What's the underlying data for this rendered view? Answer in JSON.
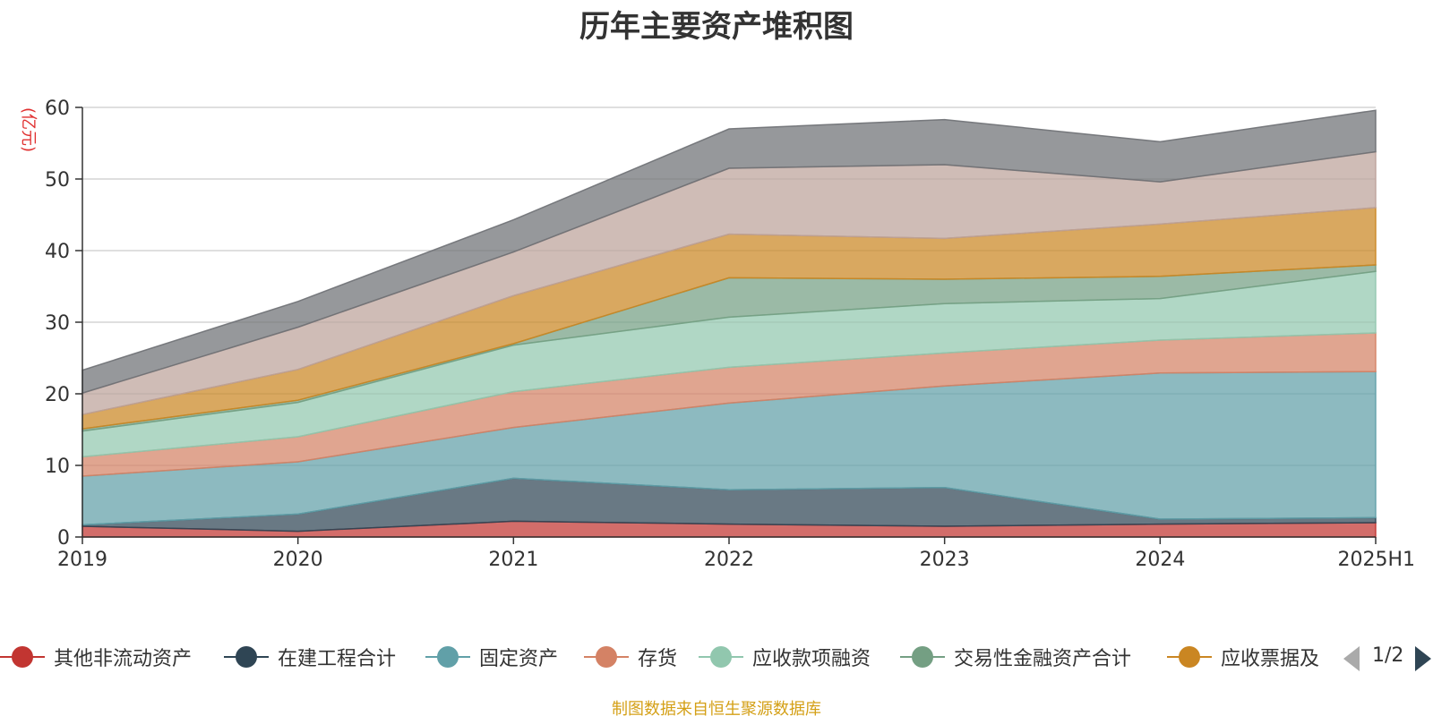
{
  "chart_data": {
    "type": "area",
    "stacked": true,
    "title": "历年主要资产堆积图",
    "y_unit_label": "(亿元)",
    "categories": [
      "2019",
      "2020",
      "2021",
      "2022",
      "2023",
      "2024",
      "2025H1"
    ],
    "ylim": [
      0,
      60
    ],
    "yticks": [
      0,
      10,
      20,
      30,
      40,
      50,
      60
    ],
    "grid": true,
    "legend_position": "bottom",
    "series": [
      {
        "name": "其他非流动资产",
        "color": "#c23531",
        "values": [
          1.5,
          0.8,
          2.2,
          1.8,
          1.5,
          1.8,
          2.0
        ]
      },
      {
        "name": "在建工程合计",
        "color": "#2f4554",
        "values": [
          0.2,
          2.4,
          6.0,
          4.8,
          5.4,
          0.7,
          0.7
        ]
      },
      {
        "name": "固定资产",
        "color": "#61a0a8",
        "values": [
          6.8,
          7.3,
          7.1,
          12.1,
          14.2,
          20.4,
          20.4
        ]
      },
      {
        "name": "存货",
        "color": "#d48265",
        "values": [
          2.7,
          3.5,
          5.0,
          5.0,
          4.6,
          4.6,
          5.4
        ]
      },
      {
        "name": "应收款项融资",
        "color": "#91c7ae",
        "values": [
          3.6,
          4.8,
          6.5,
          7.0,
          6.9,
          5.8,
          8.6
        ]
      },
      {
        "name": "交易性金融资产合计",
        "color": "#749f83",
        "values": [
          0.3,
          0.3,
          0.2,
          5.5,
          3.4,
          3.1,
          0.9
        ]
      },
      {
        "name": "应收票据及",
        "color": "#ca8622",
        "values": [
          2.0,
          4.3,
          6.7,
          6.1,
          5.7,
          7.3,
          8.0
        ]
      },
      {
        "name": "",
        "color": "#bda29a",
        "values": [
          3.0,
          5.9,
          6.1,
          9.2,
          10.3,
          5.9,
          7.8
        ]
      },
      {
        "name": "",
        "color": "#6e7074",
        "values": [
          3.2,
          3.6,
          4.5,
          5.5,
          6.3,
          5.6,
          5.8
        ]
      }
    ]
  },
  "legend": {
    "items": [
      {
        "label": "其他非流动资产",
        "color": "#c23531"
      },
      {
        "label": "在建工程合计",
        "color": "#2f4554"
      },
      {
        "label": "固定资产",
        "color": "#61a0a8"
      },
      {
        "label": "存货",
        "color": "#d48265"
      },
      {
        "label": "应收款项融资",
        "color": "#91c7ae"
      },
      {
        "label": "交易性金融资产合计",
        "color": "#749f83"
      },
      {
        "label": "应收票据及",
        "color": "#ca8622"
      }
    ],
    "page_text": "1/2"
  },
  "source_note": "制图数据来自恒生聚源数据库"
}
